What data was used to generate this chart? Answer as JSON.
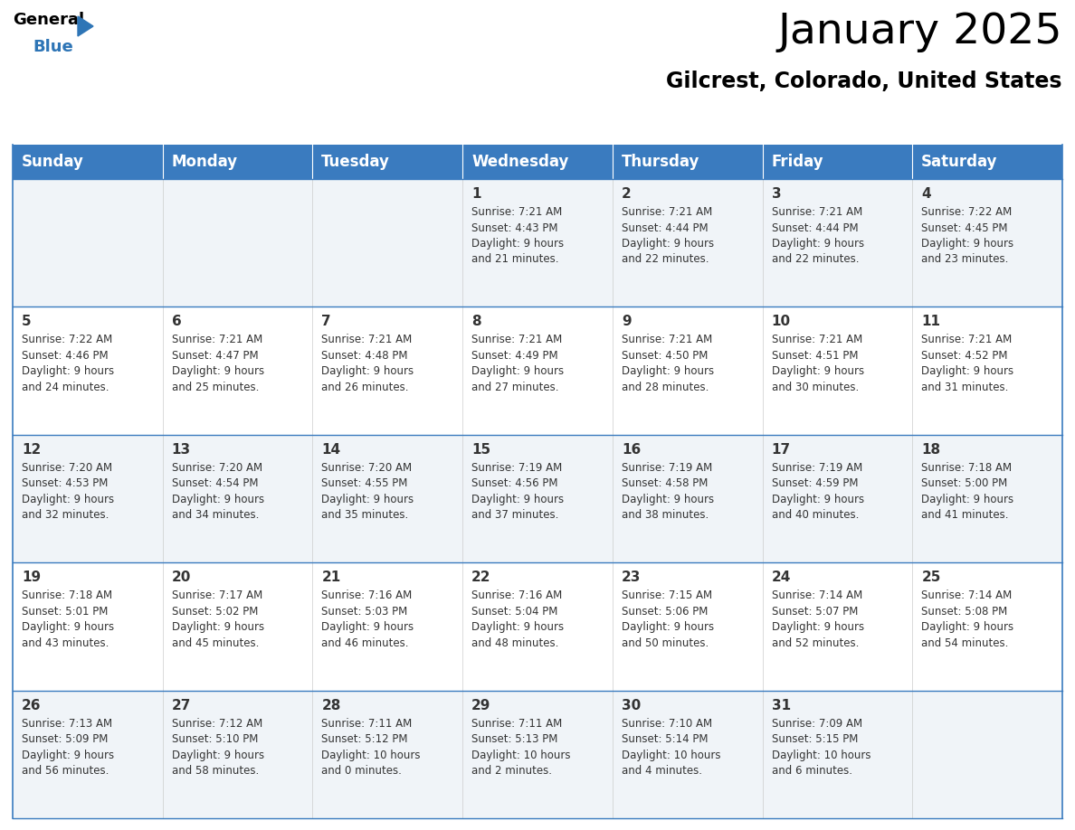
{
  "title": "January 2025",
  "subtitle": "Gilcrest, Colorado, United States",
  "header_color": "#3a7bbf",
  "header_text_color": "#ffffff",
  "cell_bg_color_even": "#f0f4f8",
  "cell_bg_color_odd": "#ffffff",
  "border_color": "#3a7bbf",
  "text_color": "#333333",
  "days_of_week": [
    "Sunday",
    "Monday",
    "Tuesday",
    "Wednesday",
    "Thursday",
    "Friday",
    "Saturday"
  ],
  "weeks": [
    [
      {
        "day": null,
        "info": null
      },
      {
        "day": null,
        "info": null
      },
      {
        "day": null,
        "info": null
      },
      {
        "day": 1,
        "info": "Sunrise: 7:21 AM\nSunset: 4:43 PM\nDaylight: 9 hours\nand 21 minutes."
      },
      {
        "day": 2,
        "info": "Sunrise: 7:21 AM\nSunset: 4:44 PM\nDaylight: 9 hours\nand 22 minutes."
      },
      {
        "day": 3,
        "info": "Sunrise: 7:21 AM\nSunset: 4:44 PM\nDaylight: 9 hours\nand 22 minutes."
      },
      {
        "day": 4,
        "info": "Sunrise: 7:22 AM\nSunset: 4:45 PM\nDaylight: 9 hours\nand 23 minutes."
      }
    ],
    [
      {
        "day": 5,
        "info": "Sunrise: 7:22 AM\nSunset: 4:46 PM\nDaylight: 9 hours\nand 24 minutes."
      },
      {
        "day": 6,
        "info": "Sunrise: 7:21 AM\nSunset: 4:47 PM\nDaylight: 9 hours\nand 25 minutes."
      },
      {
        "day": 7,
        "info": "Sunrise: 7:21 AM\nSunset: 4:48 PM\nDaylight: 9 hours\nand 26 minutes."
      },
      {
        "day": 8,
        "info": "Sunrise: 7:21 AM\nSunset: 4:49 PM\nDaylight: 9 hours\nand 27 minutes."
      },
      {
        "day": 9,
        "info": "Sunrise: 7:21 AM\nSunset: 4:50 PM\nDaylight: 9 hours\nand 28 minutes."
      },
      {
        "day": 10,
        "info": "Sunrise: 7:21 AM\nSunset: 4:51 PM\nDaylight: 9 hours\nand 30 minutes."
      },
      {
        "day": 11,
        "info": "Sunrise: 7:21 AM\nSunset: 4:52 PM\nDaylight: 9 hours\nand 31 minutes."
      }
    ],
    [
      {
        "day": 12,
        "info": "Sunrise: 7:20 AM\nSunset: 4:53 PM\nDaylight: 9 hours\nand 32 minutes."
      },
      {
        "day": 13,
        "info": "Sunrise: 7:20 AM\nSunset: 4:54 PM\nDaylight: 9 hours\nand 34 minutes."
      },
      {
        "day": 14,
        "info": "Sunrise: 7:20 AM\nSunset: 4:55 PM\nDaylight: 9 hours\nand 35 minutes."
      },
      {
        "day": 15,
        "info": "Sunrise: 7:19 AM\nSunset: 4:56 PM\nDaylight: 9 hours\nand 37 minutes."
      },
      {
        "day": 16,
        "info": "Sunrise: 7:19 AM\nSunset: 4:58 PM\nDaylight: 9 hours\nand 38 minutes."
      },
      {
        "day": 17,
        "info": "Sunrise: 7:19 AM\nSunset: 4:59 PM\nDaylight: 9 hours\nand 40 minutes."
      },
      {
        "day": 18,
        "info": "Sunrise: 7:18 AM\nSunset: 5:00 PM\nDaylight: 9 hours\nand 41 minutes."
      }
    ],
    [
      {
        "day": 19,
        "info": "Sunrise: 7:18 AM\nSunset: 5:01 PM\nDaylight: 9 hours\nand 43 minutes."
      },
      {
        "day": 20,
        "info": "Sunrise: 7:17 AM\nSunset: 5:02 PM\nDaylight: 9 hours\nand 45 minutes."
      },
      {
        "day": 21,
        "info": "Sunrise: 7:16 AM\nSunset: 5:03 PM\nDaylight: 9 hours\nand 46 minutes."
      },
      {
        "day": 22,
        "info": "Sunrise: 7:16 AM\nSunset: 5:04 PM\nDaylight: 9 hours\nand 48 minutes."
      },
      {
        "day": 23,
        "info": "Sunrise: 7:15 AM\nSunset: 5:06 PM\nDaylight: 9 hours\nand 50 minutes."
      },
      {
        "day": 24,
        "info": "Sunrise: 7:14 AM\nSunset: 5:07 PM\nDaylight: 9 hours\nand 52 minutes."
      },
      {
        "day": 25,
        "info": "Sunrise: 7:14 AM\nSunset: 5:08 PM\nDaylight: 9 hours\nand 54 minutes."
      }
    ],
    [
      {
        "day": 26,
        "info": "Sunrise: 7:13 AM\nSunset: 5:09 PM\nDaylight: 9 hours\nand 56 minutes."
      },
      {
        "day": 27,
        "info": "Sunrise: 7:12 AM\nSunset: 5:10 PM\nDaylight: 9 hours\nand 58 minutes."
      },
      {
        "day": 28,
        "info": "Sunrise: 7:11 AM\nSunset: 5:12 PM\nDaylight: 10 hours\nand 0 minutes."
      },
      {
        "day": 29,
        "info": "Sunrise: 7:11 AM\nSunset: 5:13 PM\nDaylight: 10 hours\nand 2 minutes."
      },
      {
        "day": 30,
        "info": "Sunrise: 7:10 AM\nSunset: 5:14 PM\nDaylight: 10 hours\nand 4 minutes."
      },
      {
        "day": 31,
        "info": "Sunrise: 7:09 AM\nSunset: 5:15 PM\nDaylight: 10 hours\nand 6 minutes."
      },
      {
        "day": null,
        "info": null
      }
    ]
  ],
  "logo_triangle_color": "#2e75b6",
  "title_fontsize": 34,
  "subtitle_fontsize": 17,
  "header_fontsize": 12,
  "day_num_fontsize": 11,
  "info_fontsize": 8.5
}
